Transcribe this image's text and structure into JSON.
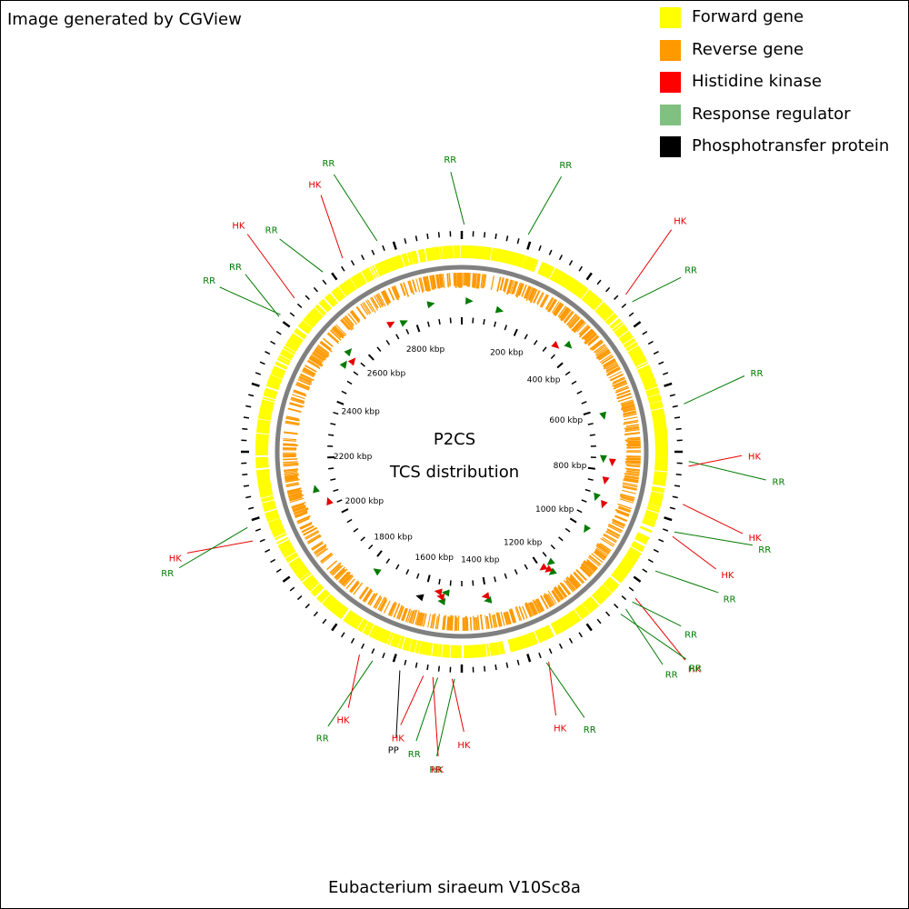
{
  "credit": "Image generated by CGView",
  "legend": [
    {
      "label": "Forward gene",
      "color": "#FFFF00"
    },
    {
      "label": "Reverse gene",
      "color": "#FF9900"
    },
    {
      "label": "Histidine kinase",
      "color": "#FF0000"
    },
    {
      "label": "Response regulator",
      "color": "#80C080"
    },
    {
      "label": "Phosphotransfer protein",
      "color": "#000000"
    }
  ],
  "center_title": "P2CS",
  "center_subtitle": "TCS distribution",
  "organism": "Eubacterium siraeum V10Sc8a",
  "genome_size_kbp": 2960,
  "colors": {
    "forward": "#FFFF00",
    "reverse": "#FF9900",
    "hk": "#E60000",
    "rr": "#007A00",
    "pp": "#000000",
    "backbone": "#808080"
  },
  "ruler_labels": [
    "200 kbp",
    "400 kbp",
    "600 kbp",
    "800 kbp",
    "1000 kbp",
    "1200 kbp",
    "1400 kbp",
    "1600 kbp",
    "1800 kbp",
    "2000 kbp",
    "2200 kbp",
    "2400 kbp",
    "2600 kbp",
    "2800 kbp"
  ],
  "features": [
    {
      "label": "RR",
      "type": "rr",
      "pos_kbp": 5
    },
    {
      "label": "RR",
      "type": "rr",
      "pos_kbp": 140
    },
    {
      "label": "HK",
      "type": "hk",
      "pos_kbp": 380
    },
    {
      "label": "RR",
      "type": "rr",
      "pos_kbp": 400
    },
    {
      "label": "RR",
      "type": "rr",
      "pos_kbp": 640
    },
    {
      "label": "RR",
      "type": "rr",
      "pos_kbp": 760
    },
    {
      "label": "HK",
      "type": "hk",
      "pos_kbp": 770
    },
    {
      "label": "HK",
      "type": "hk",
      "pos_kbp": 850
    },
    {
      "label": "RR",
      "type": "rr",
      "pos_kbp": 910
    },
    {
      "label": "HK",
      "type": "hk",
      "pos_kbp": 920
    },
    {
      "label": "RR",
      "type": "rr",
      "pos_kbp": 1000
    },
    {
      "label": "HK",
      "type": "hk",
      "pos_kbp": 1070
    },
    {
      "label": "RR",
      "type": "rr",
      "pos_kbp": 1080
    },
    {
      "label": "RR",
      "type": "rr",
      "pos_kbp": 1100
    },
    {
      "label": "RR",
      "type": "rr",
      "pos_kbp": 1115
    },
    {
      "label": "HK",
      "type": "hk",
      "pos_kbp": 1295
    },
    {
      "label": "RR",
      "type": "rr",
      "pos_kbp": 1300
    },
    {
      "label": "RR",
      "type": "rr",
      "pos_kbp": 1495
    },
    {
      "label": "HK",
      "type": "hk",
      "pos_kbp": 1500
    },
    {
      "label": "RR",
      "type": "rr",
      "pos_kbp": 1530
    },
    {
      "label": "HK",
      "type": "hk",
      "pos_kbp": 1540
    },
    {
      "label": "HK",
      "type": "hk",
      "pos_kbp": 1560
    },
    {
      "label": "PP",
      "type": "pp",
      "pos_kbp": 1610
    },
    {
      "label": "RR",
      "type": "rr",
      "pos_kbp": 1670
    },
    {
      "label": "HK",
      "type": "hk",
      "pos_kbp": 1700
    },
    {
      "label": "HK",
      "type": "hk",
      "pos_kbp": 2030
    },
    {
      "label": "RR",
      "type": "rr",
      "pos_kbp": 2060
    },
    {
      "label": "RR",
      "type": "rr",
      "pos_kbp": 2520
    },
    {
      "label": "RR",
      "type": "rr",
      "pos_kbp": 2525
    },
    {
      "label": "HK",
      "type": "hk",
      "pos_kbp": 2570
    },
    {
      "label": "RR",
      "type": "rr",
      "pos_kbp": 2650
    },
    {
      "label": "HK",
      "type": "hk",
      "pos_kbp": 2700
    },
    {
      "label": "RR",
      "type": "rr",
      "pos_kbp": 2780
    }
  ],
  "inner_markers": [
    {
      "type": "rr",
      "pos_kbp": 20
    },
    {
      "type": "rr",
      "pos_kbp": 120
    },
    {
      "type": "hk",
      "pos_kbp": 340
    },
    {
      "type": "rr",
      "pos_kbp": 370
    },
    {
      "type": "rr",
      "pos_kbp": 620
    },
    {
      "type": "rr",
      "pos_kbp": 760
    },
    {
      "type": "hk",
      "pos_kbp": 770
    },
    {
      "type": "hk",
      "pos_kbp": 830
    },
    {
      "type": "rr",
      "pos_kbp": 890
    },
    {
      "type": "hk",
      "pos_kbp": 905
    },
    {
      "type": "rr",
      "pos_kbp": 1000
    },
    {
      "type": "rr",
      "pos_kbp": 1160
    },
    {
      "type": "rr",
      "pos_kbp": 1175
    },
    {
      "type": "hk",
      "pos_kbp": 1180
    },
    {
      "type": "hk",
      "pos_kbp": 1190
    },
    {
      "type": "rr",
      "pos_kbp": 1395
    },
    {
      "type": "hk",
      "pos_kbp": 1400
    },
    {
      "type": "rr",
      "pos_kbp": 1530
    },
    {
      "type": "rr",
      "pos_kbp": 1540
    },
    {
      "type": "hk",
      "pos_kbp": 1545
    },
    {
      "type": "hk",
      "pos_kbp": 1555
    },
    {
      "type": "pp",
      "pos_kbp": 1610
    },
    {
      "type": "rr",
      "pos_kbp": 1770
    },
    {
      "type": "hk",
      "pos_kbp": 2050
    },
    {
      "type": "rr",
      "pos_kbp": 2100
    },
    {
      "type": "rr",
      "pos_kbp": 2520
    },
    {
      "type": "hk",
      "pos_kbp": 2545
    },
    {
      "type": "rr",
      "pos_kbp": 2560
    },
    {
      "type": "hk",
      "pos_kbp": 2720
    },
    {
      "type": "rr",
      "pos_kbp": 2760
    },
    {
      "type": "rr",
      "pos_kbp": 2860
    }
  ]
}
